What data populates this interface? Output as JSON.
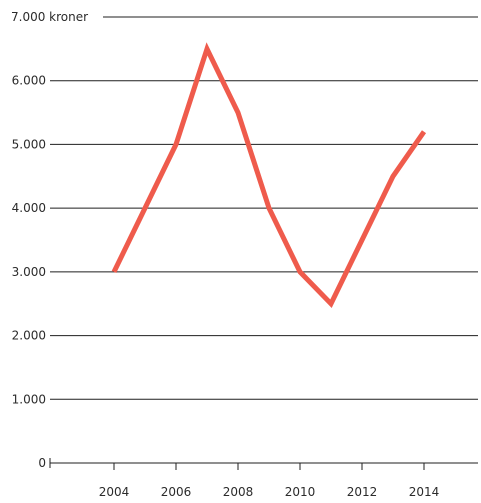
{
  "chart_data": {
    "type": "line",
    "title": "",
    "xlabel": "",
    "ylabel": "",
    "unit_label": "kroner",
    "x_ticks": [
      2004,
      2006,
      2008,
      2010,
      2012,
      2014
    ],
    "y_ticks": [
      {
        "value": 0,
        "label": "0"
      },
      {
        "value": 1000,
        "label": "1.000"
      },
      {
        "value": 2000,
        "label": "2.000"
      },
      {
        "value": 3000,
        "label": "3.000"
      },
      {
        "value": 4000,
        "label": "4.000"
      },
      {
        "value": 5000,
        "label": "5.000"
      },
      {
        "value": 6000,
        "label": "6.000"
      },
      {
        "value": 7000,
        "label": "7.000"
      }
    ],
    "xlim": [
      2001.5,
      2016
    ],
    "ylim": [
      0,
      7000
    ],
    "grid": true,
    "legend": "none",
    "series": [
      {
        "color": "#ef5b4c",
        "x": [
          2004,
          2005,
          2006,
          2007,
          2008,
          2009,
          2010,
          2011,
          2012,
          2013,
          2014
        ],
        "values": [
          3000,
          4000,
          5000,
          6500,
          5500,
          4000,
          3000,
          2500,
          3500,
          4500,
          5200
        ]
      }
    ]
  }
}
